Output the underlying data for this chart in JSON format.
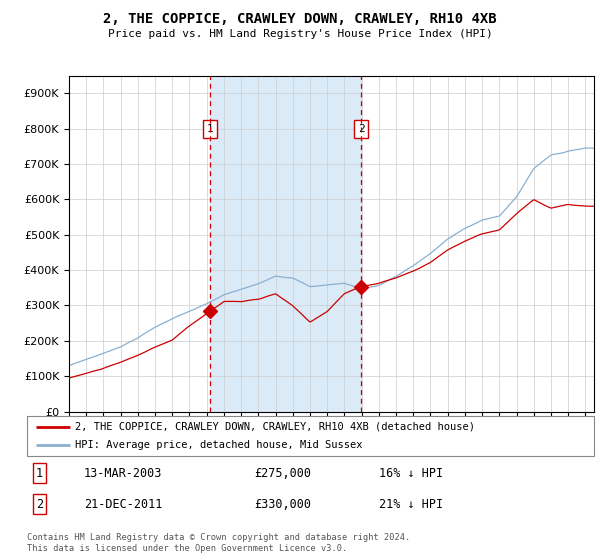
{
  "title": "2, THE COPPICE, CRAWLEY DOWN, CRAWLEY, RH10 4XB",
  "subtitle": "Price paid vs. HM Land Registry's House Price Index (HPI)",
  "legend_line1": "2, THE COPPICE, CRAWLEY DOWN, CRAWLEY, RH10 4XB (detached house)",
  "legend_line2": "HPI: Average price, detached house, Mid Sussex",
  "transaction1_label": "1",
  "transaction1_date": "13-MAR-2003",
  "transaction1_price": 275000,
  "transaction1_hpi_diff": "16% ↓ HPI",
  "transaction1_year": 2003.2,
  "transaction2_label": "2",
  "transaction2_date": "21-DEC-2011",
  "transaction2_price": 330000,
  "transaction2_hpi_diff": "21% ↓ HPI",
  "transaction2_year": 2011.97,
  "price_paid_color": "#cc0000",
  "hpi_color": "#8ab0d0",
  "shade_color": "#daeaf7",
  "vline_color": "#cc0000",
  "ylim_min": 0,
  "ylim_max": 950000,
  "xlim_min": 1995.0,
  "xlim_max": 2025.5,
  "footer_text": "Contains HM Land Registry data © Crown copyright and database right 2024.\nThis data is licensed under the Open Government Licence v3.0.",
  "background_color": "#ffffff",
  "grid_color": "#cccccc",
  "hpi_anchor_years": [
    1995,
    1996,
    1997,
    1998,
    1999,
    2000,
    2001,
    2002,
    2003,
    2004,
    2005,
    2006,
    2007,
    2008,
    2009,
    2010,
    2011,
    2012,
    2013,
    2014,
    2015,
    2016,
    2017,
    2018,
    2019,
    2020,
    2021,
    2022,
    2023,
    2024,
    2025
  ],
  "hpi_anchor_vals": [
    130000,
    148000,
    165000,
    185000,
    210000,
    240000,
    265000,
    285000,
    305000,
    330000,
    345000,
    360000,
    385000,
    380000,
    355000,
    360000,
    365000,
    350000,
    360000,
    385000,
    415000,
    450000,
    490000,
    520000,
    545000,
    555000,
    610000,
    690000,
    730000,
    740000,
    750000
  ],
  "pp_anchor_years": [
    1995,
    1996,
    1997,
    1998,
    1999,
    2000,
    2001,
    2002,
    2003,
    2004,
    2005,
    2006,
    2007,
    2008,
    2009,
    2010,
    2011,
    2012,
    2013,
    2014,
    2015,
    2016,
    2017,
    2018,
    2019,
    2020,
    2021,
    2022,
    2023,
    2024,
    2025
  ],
  "pp_anchor_vals": [
    95000,
    108000,
    122000,
    138000,
    158000,
    180000,
    200000,
    240000,
    275000,
    310000,
    310000,
    315000,
    330000,
    295000,
    250000,
    280000,
    330000,
    350000,
    360000,
    375000,
    395000,
    420000,
    455000,
    480000,
    500000,
    510000,
    555000,
    595000,
    570000,
    580000,
    575000
  ]
}
